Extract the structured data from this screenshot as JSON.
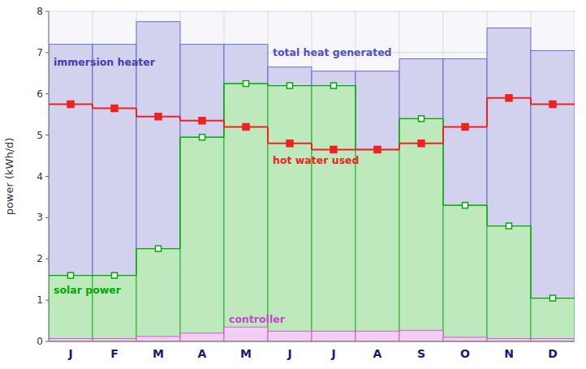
{
  "chart_data": {
    "type": "bar",
    "stacked": false,
    "categories": [
      "J",
      "F",
      "M",
      "A",
      "M",
      "J",
      "J",
      "A",
      "S",
      "O",
      "N",
      "D"
    ],
    "y_label": "power (kWh/d)",
    "ylim": [
      0,
      8
    ],
    "yticks": [
      0,
      1,
      2,
      3,
      4,
      5,
      6,
      7,
      8
    ],
    "grid": true,
    "series": [
      {
        "name": "total heat generated",
        "type": "bar",
        "color": "#5050c0",
        "values": [
          7.2,
          7.2,
          7.75,
          7.2,
          7.2,
          6.65,
          6.55,
          6.55,
          6.85,
          6.85,
          7.6,
          7.05
        ]
      },
      {
        "name": "solar power",
        "type": "bar",
        "color": "#00aa00",
        "marker": "square-open",
        "line_style": "step",
        "values": [
          1.6,
          1.6,
          2.25,
          4.95,
          6.25,
          6.2,
          6.2,
          4.65,
          5.4,
          3.3,
          2.8,
          1.05
        ]
      },
      {
        "name": "controller",
        "type": "bar",
        "color": "#cc44cc",
        "values": [
          0.07,
          0.07,
          0.12,
          0.2,
          0.35,
          0.25,
          0.25,
          0.25,
          0.27,
          0.1,
          0.07,
          0.07
        ]
      },
      {
        "name": "hot water used",
        "type": "line",
        "color": "#ee2222",
        "marker": "square",
        "line_style": "step",
        "values": [
          5.75,
          5.65,
          5.45,
          5.35,
          5.2,
          4.8,
          4.65,
          4.65,
          4.8,
          5.2,
          5.9,
          5.75
        ]
      }
    ],
    "annotations": [
      {
        "text": "immersion heater",
        "color": "#4040b0"
      }
    ]
  }
}
